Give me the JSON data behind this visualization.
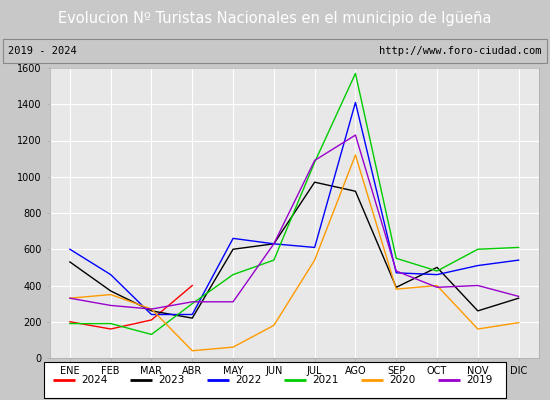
{
  "title": "Evolucion Nº Turistas Nacionales en el municipio de Igüeña",
  "subtitle_left": "2019 - 2024",
  "subtitle_right": "http://www.foro-ciudad.com",
  "x_labels": [
    "ENE",
    "FEB",
    "MAR",
    "ABR",
    "MAY",
    "JUN",
    "JUL",
    "AGO",
    "SEP",
    "OCT",
    "NOV",
    "DIC"
  ],
  "ylim": [
    0,
    1600
  ],
  "yticks": [
    0,
    200,
    400,
    600,
    800,
    1000,
    1200,
    1400,
    1600
  ],
  "series": {
    "2024": {
      "color": "#ff0000",
      "data": [
        200,
        160,
        210,
        400,
        null,
        null,
        null,
        null,
        null,
        null,
        null,
        null
      ]
    },
    "2023": {
      "color": "#000000",
      "data": [
        530,
        370,
        260,
        220,
        600,
        630,
        970,
        920,
        390,
        500,
        260,
        330
      ]
    },
    "2022": {
      "color": "#0000ff",
      "data": [
        600,
        460,
        240,
        240,
        660,
        630,
        610,
        1410,
        470,
        460,
        510,
        540
      ]
    },
    "2021": {
      "color": "#00cc00",
      "data": [
        190,
        190,
        130,
        300,
        460,
        540,
        1080,
        1570,
        550,
        480,
        600,
        610
      ]
    },
    "2020": {
      "color": "#ff9900",
      "data": [
        330,
        350,
        270,
        40,
        60,
        180,
        540,
        1120,
        380,
        400,
        160,
        195
      ]
    },
    "2019": {
      "color": "#9900cc",
      "data": [
        330,
        290,
        270,
        310,
        310,
        630,
        1090,
        1230,
        480,
        390,
        400,
        340
      ]
    }
  },
  "legend_order": [
    "2024",
    "2023",
    "2022",
    "2021",
    "2020",
    "2019"
  ],
  "title_bg_color": "#4472c4",
  "title_text_color": "#ffffff",
  "subtitle_bg_color": "#e8e8e8",
  "plot_bg_color": "#e8e8e8",
  "grid_color": "#ffffff",
  "border_color": "#aaaaaa",
  "title_fontsize": 10.5,
  "subtitle_fontsize": 7.5,
  "axis_fontsize": 7,
  "legend_fontsize": 7.5
}
